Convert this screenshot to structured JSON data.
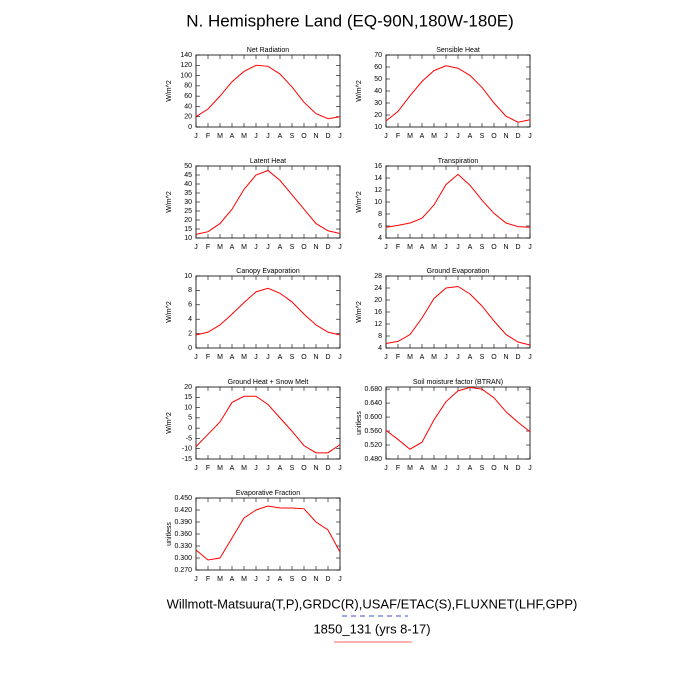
{
  "title": "N. Hemisphere Land (EQ-90N,180W-180E)",
  "footer": [
    "Willmott-Matsuura(T,P),GRDC(R),USAF/ETAC(S),FLUXNET(LHF,GPP)",
    "1850_131 (yrs 8-17)"
  ],
  "chart_data": [
    {
      "type": "line",
      "title": "Net Radiation",
      "ylabel": "W/m^2",
      "color": "#ff0000",
      "categories": [
        "J",
        "F",
        "M",
        "A",
        "M",
        "J",
        "J",
        "A",
        "S",
        "O",
        "N",
        "D",
        "J"
      ],
      "values": [
        20,
        35,
        60,
        88,
        108,
        120,
        118,
        103,
        78,
        48,
        26,
        16,
        20
      ],
      "ylim": [
        0,
        140
      ],
      "yticks": [
        0,
        20,
        40,
        60,
        80,
        100,
        120,
        140
      ]
    },
    {
      "type": "line",
      "title": "Sensible Heat",
      "ylabel": "W/m^2",
      "color": "#ff0000",
      "categories": [
        "J",
        "F",
        "M",
        "A",
        "M",
        "J",
        "J",
        "A",
        "S",
        "O",
        "N",
        "D",
        "J"
      ],
      "values": [
        15,
        23,
        36,
        48,
        57,
        61,
        59,
        53,
        43,
        30,
        19,
        14,
        16
      ],
      "ylim": [
        10,
        70
      ],
      "yticks": [
        10,
        20,
        30,
        40,
        50,
        60,
        70
      ]
    },
    {
      "type": "line",
      "title": "Latent Heat",
      "ylabel": "W/m^2",
      "color": "#ff0000",
      "categories": [
        "J",
        "F",
        "M",
        "A",
        "M",
        "J",
        "J",
        "A",
        "S",
        "O",
        "N",
        "D",
        "J"
      ],
      "values": [
        12,
        13.5,
        18,
        26,
        37,
        45,
        47.5,
        42,
        34,
        26,
        18,
        14,
        12.5
      ],
      "ylim": [
        10,
        50
      ],
      "yticks": [
        10,
        15,
        20,
        25,
        30,
        35,
        40,
        45,
        50
      ]
    },
    {
      "type": "line",
      "title": "Transpiration",
      "ylabel": "W/m^2",
      "color": "#ff0000",
      "categories": [
        "J",
        "F",
        "M",
        "A",
        "M",
        "J",
        "J",
        "A",
        "S",
        "O",
        "N",
        "D",
        "J"
      ],
      "values": [
        5.8,
        6.1,
        6.5,
        7.3,
        9.5,
        12.9,
        14.6,
        12.8,
        10.3,
        8.1,
        6.5,
        5.9,
        5.8
      ],
      "ylim": [
        4,
        16
      ],
      "yticks": [
        4,
        6,
        8,
        10,
        12,
        14,
        16
      ]
    },
    {
      "type": "line",
      "title": "Canopy Evaporation",
      "ylabel": "W/m^2",
      "color": "#ff0000",
      "categories": [
        "J",
        "F",
        "M",
        "A",
        "M",
        "J",
        "J",
        "A",
        "S",
        "O",
        "N",
        "D",
        "J"
      ],
      "values": [
        1.8,
        2.2,
        3.2,
        4.7,
        6.3,
        7.8,
        8.3,
        7.6,
        6.4,
        4.7,
        3.2,
        2.2,
        1.8
      ],
      "ylim": [
        0,
        10
      ],
      "yticks": [
        0,
        2,
        4,
        6,
        8,
        10
      ]
    },
    {
      "type": "line",
      "title": "Ground Evaporation",
      "ylabel": "W/m^2",
      "color": "#ff0000",
      "categories": [
        "J",
        "F",
        "M",
        "A",
        "M",
        "J",
        "J",
        "A",
        "S",
        "O",
        "N",
        "D",
        "J"
      ],
      "values": [
        5.5,
        6.2,
        8.5,
        14,
        20.5,
        24,
        24.5,
        22,
        18,
        13,
        8.5,
        6,
        5
      ],
      "ylim": [
        4,
        28
      ],
      "yticks": [
        4,
        8,
        12,
        16,
        20,
        24,
        28
      ]
    },
    {
      "type": "line",
      "title": "Ground Heat + Snow Melt",
      "ylabel": "W/m^2",
      "color": "#ff0000",
      "categories": [
        "J",
        "F",
        "M",
        "A",
        "M",
        "J",
        "J",
        "A",
        "S",
        "O",
        "N",
        "D",
        "J"
      ],
      "values": [
        -9,
        -3,
        3,
        12.5,
        15.5,
        15.5,
        11.5,
        5,
        -1.5,
        -8.5,
        -12,
        -12,
        -8
      ],
      "ylim": [
        -15,
        20
      ],
      "yticks": [
        -15,
        -10,
        -5,
        0,
        5,
        10,
        15,
        20
      ]
    },
    {
      "type": "line",
      "title": "Soil moisture factor (BTRAN)",
      "ylabel": "unitless",
      "color": "#ff0000",
      "categories": [
        "J",
        "F",
        "M",
        "A",
        "M",
        "J",
        "J",
        "A",
        "S",
        "O",
        "N",
        "D",
        "J"
      ],
      "values": [
        0.562,
        0.536,
        0.508,
        0.528,
        0.592,
        0.644,
        0.675,
        0.685,
        0.68,
        0.655,
        0.615,
        0.585,
        0.558
      ],
      "ylim": [
        0.48,
        0.686
      ],
      "yticks": [
        {
          "value": 0.48,
          "label": "0.480"
        },
        {
          "value": 0.52,
          "label": "0.520"
        },
        {
          "value": 0.56,
          "label": "0.560"
        },
        {
          "value": 0.6,
          "label": "0.600"
        },
        {
          "value": 0.64,
          "label": "0.640"
        },
        {
          "value": 0.68,
          "label": "0.680"
        }
      ]
    },
    {
      "type": "line",
      "title": "Evaporative Fraction",
      "ylabel": "unitless",
      "color": "#ff0000",
      "categories": [
        "J",
        "F",
        "M",
        "A",
        "M",
        "J",
        "J",
        "A",
        "S",
        "O",
        "N",
        "D",
        "J"
      ],
      "values": [
        0.32,
        0.295,
        0.3,
        0.35,
        0.4,
        0.42,
        0.43,
        0.425,
        0.425,
        0.423,
        0.39,
        0.37,
        0.315
      ],
      "ylim": [
        0.27,
        0.45
      ],
      "yticks": [
        {
          "value": 0.27,
          "label": "0.270"
        },
        {
          "value": 0.3,
          "label": "0.300"
        },
        {
          "value": 0.33,
          "label": "0.330"
        },
        {
          "value": 0.36,
          "label": "0.360"
        },
        {
          "value": 0.39,
          "label": "0.390"
        },
        {
          "value": 0.42,
          "label": "0.420"
        },
        {
          "value": 0.45,
          "label": "0.450"
        }
      ]
    }
  ]
}
